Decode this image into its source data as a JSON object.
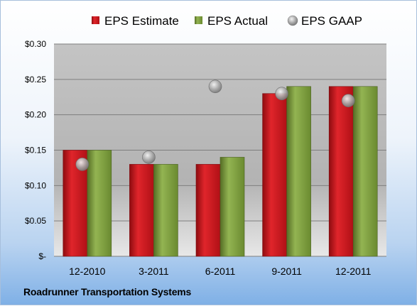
{
  "chart_data": {
    "type": "bar",
    "categories": [
      "12-2010",
      "3-2011",
      "6-2011",
      "9-2011",
      "12-2011"
    ],
    "series": [
      {
        "name": "EPS Estimate",
        "kind": "bar",
        "values": [
          0.15,
          0.13,
          0.13,
          0.23,
          0.24
        ],
        "color": "#c8141c"
      },
      {
        "name": "EPS Actual",
        "kind": "bar",
        "values": [
          0.15,
          0.13,
          0.14,
          0.24,
          0.24
        ],
        "color": "#77973a"
      },
      {
        "name": "EPS GAAP",
        "kind": "scatter",
        "values": [
          0.13,
          0.14,
          0.24,
          0.23,
          0.22
        ],
        "color": "#a6a6a6"
      }
    ],
    "yticks": [
      "$-",
      "$0.05",
      "$0.10",
      "$0.15",
      "$0.20",
      "$0.25",
      "$0.30"
    ],
    "ylim": [
      0,
      0.3
    ],
    "grid": true,
    "legend_position": "top",
    "footer": "Roadrunner Transportation Systems"
  }
}
